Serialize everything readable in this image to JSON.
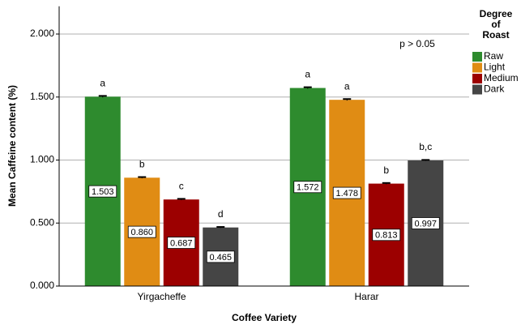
{
  "chart_data": {
    "type": "bar",
    "x_label": "Coffee Variety",
    "y_label": "Mean Caffeine content (%)",
    "annotation": "p > 0.05",
    "legend_title": [
      "Degree",
      "of",
      "Roast"
    ],
    "categories": [
      "Yirgacheffe",
      "Harar"
    ],
    "series": [
      {
        "name": "Raw",
        "color": "#2e8b2e",
        "values": [
          1.503,
          1.572
        ],
        "value_labels": [
          "1.503",
          "1.572"
        ],
        "errors": [
          0.006,
          0.006
        ],
        "letters": [
          "a",
          "a"
        ]
      },
      {
        "name": "Light",
        "color": "#e08c14",
        "values": [
          0.86,
          1.478
        ],
        "value_labels": [
          "0.860",
          "1.478"
        ],
        "errors": [
          0.005,
          0.006
        ],
        "letters": [
          "b",
          "a"
        ]
      },
      {
        "name": "Medium",
        "color": "#9c0000",
        "values": [
          0.687,
          0.813
        ],
        "value_labels": [
          "0.687",
          "0.813"
        ],
        "errors": [
          0.005,
          0.005
        ],
        "letters": [
          "c",
          "b"
        ]
      },
      {
        "name": "Dark",
        "color": "#454545",
        "values": [
          0.465,
          0.997
        ],
        "value_labels": [
          "0.465",
          "0.997"
        ],
        "errors": [
          0.004,
          0.004
        ],
        "letters": [
          "d",
          "b,c"
        ]
      }
    ],
    "ylim": [
      0,
      2.22
    ],
    "yticks": [
      {
        "value": 0,
        "label": "0.000"
      },
      {
        "value": 0.5,
        "label": "0.500"
      },
      {
        "value": 1,
        "label": "1.000"
      },
      {
        "value": 1.5,
        "label": "1.500"
      },
      {
        "value": 2,
        "label": "2.000"
      }
    ],
    "grid": true,
    "legend": "right"
  }
}
